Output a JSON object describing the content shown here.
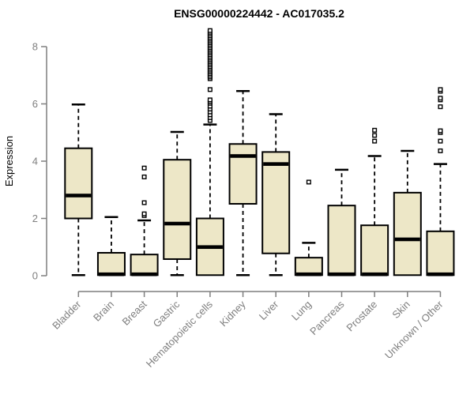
{
  "chart_data": {
    "type": "boxplot",
    "title": "ENSG00000224442 - AC017035.2",
    "ylabel": "Expression",
    "xlabel": "",
    "ylim": [
      0,
      8.6
    ],
    "yticks": [
      0,
      2,
      4,
      6,
      8
    ],
    "grid": false,
    "legend": "none",
    "categories": [
      "Bladder",
      "Brain",
      "Breast",
      "Gastric",
      "Hematopoietic cells",
      "Kidney",
      "Liver",
      "Lung",
      "Pancreas",
      "Prostate",
      "Skin",
      "Unknown / Other"
    ],
    "boxes": [
      {
        "category": "Bladder",
        "whisker_low": 0.02,
        "q1": 2.0,
        "median": 2.8,
        "q3": 4.45,
        "whisker_high": 5.98,
        "outliers": []
      },
      {
        "category": "Brain",
        "whisker_low": 0.02,
        "q1": 0.02,
        "median": 0.05,
        "q3": 0.8,
        "whisker_high": 2.05,
        "outliers": []
      },
      {
        "category": "Breast",
        "whisker_low": 0.02,
        "q1": 0.02,
        "median": 0.05,
        "q3": 0.74,
        "whisker_high": 1.93,
        "outliers": [
          2.1,
          2.16,
          2.55,
          3.45,
          3.76
        ]
      },
      {
        "category": "Gastric",
        "whisker_low": 0.02,
        "q1": 0.58,
        "median": 1.82,
        "q3": 4.05,
        "whisker_high": 5.02,
        "outliers": []
      },
      {
        "category": "Hematopoietic cells",
        "whisker_low": 0.02,
        "q1": 0.02,
        "median": 1.0,
        "q3": 2.0,
        "whisker_high": 5.28,
        "outliers": [
          5.42,
          5.52,
          5.62,
          5.72,
          5.82,
          5.92,
          6.02,
          6.08,
          6.14,
          6.5,
          6.88,
          6.94,
          7.0,
          7.06,
          7.12,
          7.18,
          7.24,
          7.3,
          7.36,
          7.42,
          7.48,
          7.54,
          7.6,
          7.66,
          7.72,
          7.78,
          7.84,
          7.9,
          7.96,
          8.02,
          8.08,
          8.14,
          8.2,
          8.26,
          8.32,
          8.38,
          8.44,
          8.5,
          8.56
        ]
      },
      {
        "category": "Kidney",
        "whisker_low": 0.02,
        "q1": 2.51,
        "median": 4.18,
        "q3": 4.6,
        "whisker_high": 6.45,
        "outliers": []
      },
      {
        "category": "Liver",
        "whisker_low": 0.02,
        "q1": 0.78,
        "median": 3.9,
        "q3": 4.32,
        "whisker_high": 5.64,
        "outliers": []
      },
      {
        "category": "Lung",
        "whisker_low": 0.02,
        "q1": 0.02,
        "median": 0.05,
        "q3": 0.63,
        "whisker_high": 1.15,
        "outliers": [
          3.27
        ]
      },
      {
        "category": "Pancreas",
        "whisker_low": 0.02,
        "q1": 0.02,
        "median": 0.05,
        "q3": 2.45,
        "whisker_high": 3.7,
        "outliers": []
      },
      {
        "category": "Prostate",
        "whisker_low": 0.02,
        "q1": 0.02,
        "median": 0.05,
        "q3": 1.76,
        "whisker_high": 4.18,
        "outliers": [
          4.7,
          4.9,
          5.08
        ]
      },
      {
        "category": "Skin",
        "whisker_low": 0.02,
        "q1": 0.02,
        "median": 1.27,
        "q3": 2.9,
        "whisker_high": 4.36,
        "outliers": []
      },
      {
        "category": "Unknown / Other",
        "whisker_low": 0.02,
        "q1": 0.02,
        "median": 0.05,
        "q3": 1.55,
        "whisker_high": 3.9,
        "outliers": [
          4.36,
          4.7,
          5.0,
          5.06,
          5.9,
          6.14,
          6.2,
          6.44,
          6.5
        ]
      }
    ],
    "style": {
      "box_fill": "#EDE7C7",
      "box_stroke": "#000000",
      "median_color": "#000000",
      "whisker_color": "#000000",
      "outlier_color": "#000000",
      "axis_color": "#7F7F7F",
      "tick_label_color": "#7F7F7F",
      "title_color": "#000000",
      "background": "#FFFFFF"
    }
  }
}
